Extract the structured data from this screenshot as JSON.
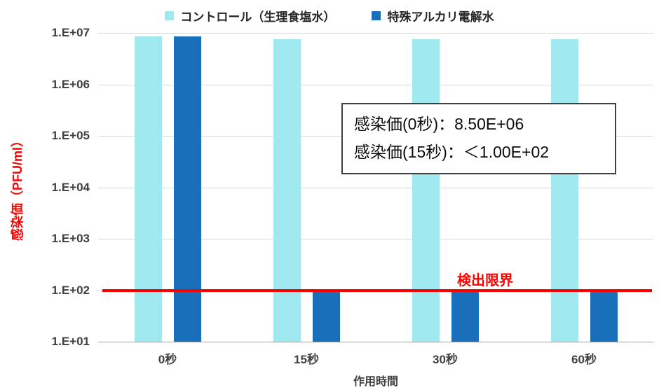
{
  "chart_data": {
    "type": "bar",
    "scale": "log",
    "title": "",
    "categories": [
      "0秒",
      "15秒",
      "30秒",
      "60秒"
    ],
    "series": [
      {
        "name": "コントロール（生理食塩水）",
        "color": "#a0e9f0",
        "values": [
          8500000,
          7500000,
          7500000,
          7500000
        ]
      },
      {
        "name": "特殊アルカリ電解水",
        "color": "#1a6fba",
        "values": [
          8500000,
          100,
          100,
          100
        ]
      }
    ],
    "xlabel": "作用時間",
    "ylabel": "感染価（PFU/ml）",
    "ylim": [
      10,
      10000000
    ],
    "yticks": [
      {
        "label": "1.E+07",
        "value": 10000000
      },
      {
        "label": "1.E+06",
        "value": 1000000
      },
      {
        "label": "1.E+05",
        "value": 100000
      },
      {
        "label": "1.E+04",
        "value": 10000
      },
      {
        "label": "1.E+03",
        "value": 1000
      },
      {
        "label": "1.E+02",
        "value": 100
      },
      {
        "label": "1.E+01",
        "value": 10
      }
    ],
    "grid": true,
    "legend_position": "top",
    "detection_limit": {
      "value": 100,
      "label": "検出限界",
      "color": "#ff0000"
    },
    "annotation": {
      "lines": [
        "感染価(0秒)：8.50E+06",
        "感染価(15秒)：＜1.00E+02"
      ]
    }
  }
}
